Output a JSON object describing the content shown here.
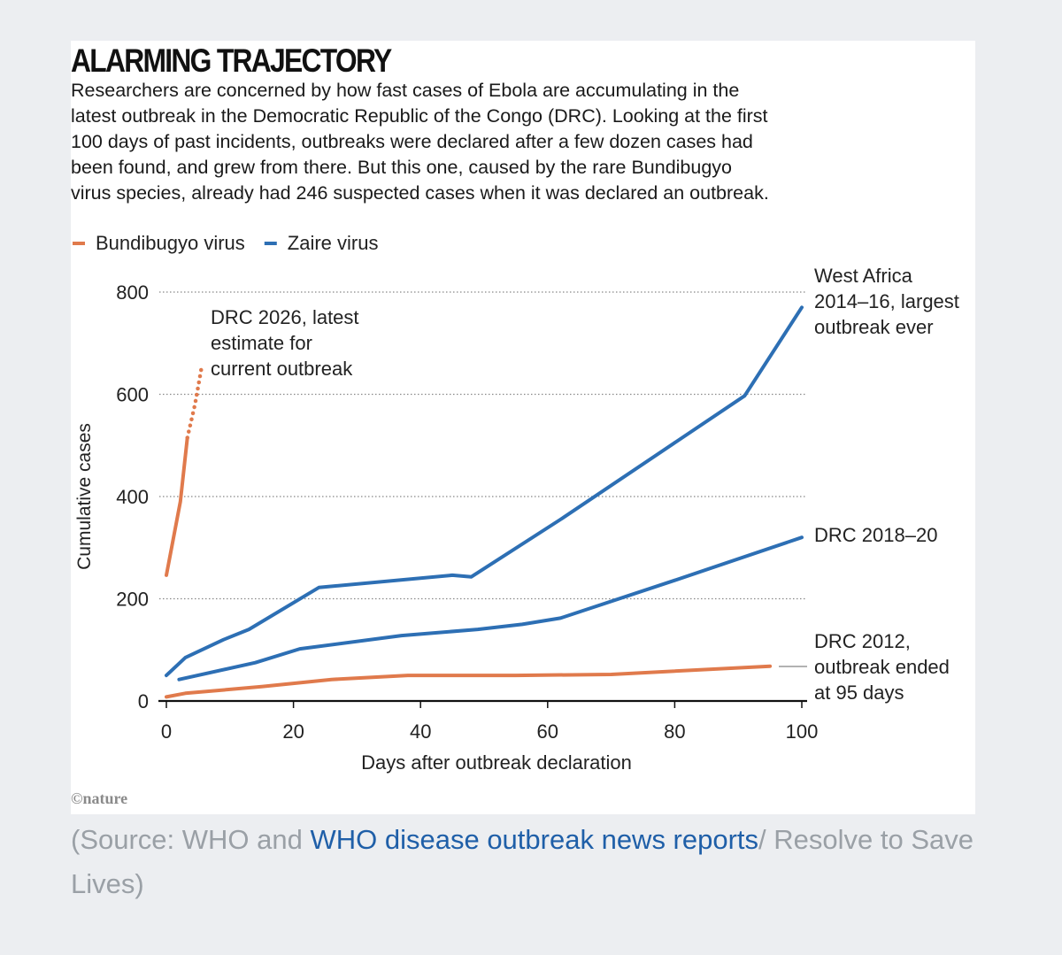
{
  "chart_data": {
    "type": "line",
    "title": "ALARMING TRAJECTORY",
    "subtitle_lines": [
      "Researchers are concerned by how fast cases of Ebola are accumulating in the",
      "latest outbreak in the Democratic Republic of the Congo (DRC). Looking at the first",
      "100 days of past incidents, outbreaks were declared after a few dozen cases had",
      "been found, and grew from there. But this one, caused by the rare Bundibugyo",
      "virus species, already had 246 suspected cases when it was declared an outbreak."
    ],
    "xlabel": "Days after outbreak declaration",
    "ylabel": "Cumulative cases",
    "xlim": [
      0,
      100
    ],
    "ylim": [
      0,
      800
    ],
    "x_ticks": [
      "0",
      "20",
      "40",
      "60",
      "80",
      "100"
    ],
    "y_ticks": [
      "0",
      "200",
      "400",
      "600",
      "800"
    ],
    "grid": "horizontal dotted",
    "legend_placement": "top-left",
    "legend": [
      {
        "label": "Bundibugyo virus",
        "color": "#e07a4c"
      },
      {
        "label": "Zaire virus",
        "color": "#2d6fb4"
      }
    ],
    "series": [
      {
        "virus": "Bundibugyo virus",
        "color": "#e07a4c",
        "style": "solid",
        "label_lines": [
          "DRC 2026, latest",
          "estimate for",
          "current outbreak"
        ],
        "points": [
          [
            0,
            246
          ],
          [
            2.2,
            390
          ],
          [
            3.3,
            515
          ]
        ]
      },
      {
        "virus": "Bundibugyo virus",
        "color": "#e07a4c",
        "style": "dotted",
        "points": [
          [
            3.3,
            515
          ],
          [
            4.5,
            580
          ],
          [
            5.5,
            650
          ]
        ]
      },
      {
        "virus": "Zaire virus",
        "color": "#2d6fb4",
        "style": "solid",
        "label_lines": [
          "West Africa",
          "2014–16, largest",
          "outbreak ever"
        ],
        "points": [
          [
            0,
            50
          ],
          [
            3,
            85
          ],
          [
            9,
            120
          ],
          [
            13,
            140
          ],
          [
            24,
            222
          ],
          [
            45,
            246
          ],
          [
            48,
            243
          ],
          [
            62,
            355
          ],
          [
            91,
            597
          ],
          [
            100,
            770
          ]
        ]
      },
      {
        "virus": "Zaire virus",
        "color": "#2d6fb4",
        "style": "solid",
        "label_lines": [
          "DRC 2018–20"
        ],
        "points": [
          [
            2,
            42
          ],
          [
            14,
            75
          ],
          [
            21,
            102
          ],
          [
            37,
            128
          ],
          [
            49,
            140
          ],
          [
            56,
            150
          ],
          [
            62,
            162
          ],
          [
            80,
            236
          ],
          [
            100,
            320
          ]
        ]
      },
      {
        "virus": "Bundibugyo virus",
        "color": "#e07a4c",
        "style": "solid",
        "label_lines": [
          "DRC 2012,",
          "outbreak ended",
          "at 95 days"
        ],
        "points": [
          [
            0,
            8
          ],
          [
            3,
            15
          ],
          [
            15,
            28
          ],
          [
            26,
            42
          ],
          [
            38,
            50
          ],
          [
            55,
            50
          ],
          [
            70,
            52
          ],
          [
            95,
            68
          ]
        ]
      }
    ],
    "credit": "©nature"
  },
  "source": {
    "prefix": "(Source: WHO and ",
    "link": "WHO disease outbreak news reports",
    "suffix": "/ Resolve to Save Lives)"
  }
}
